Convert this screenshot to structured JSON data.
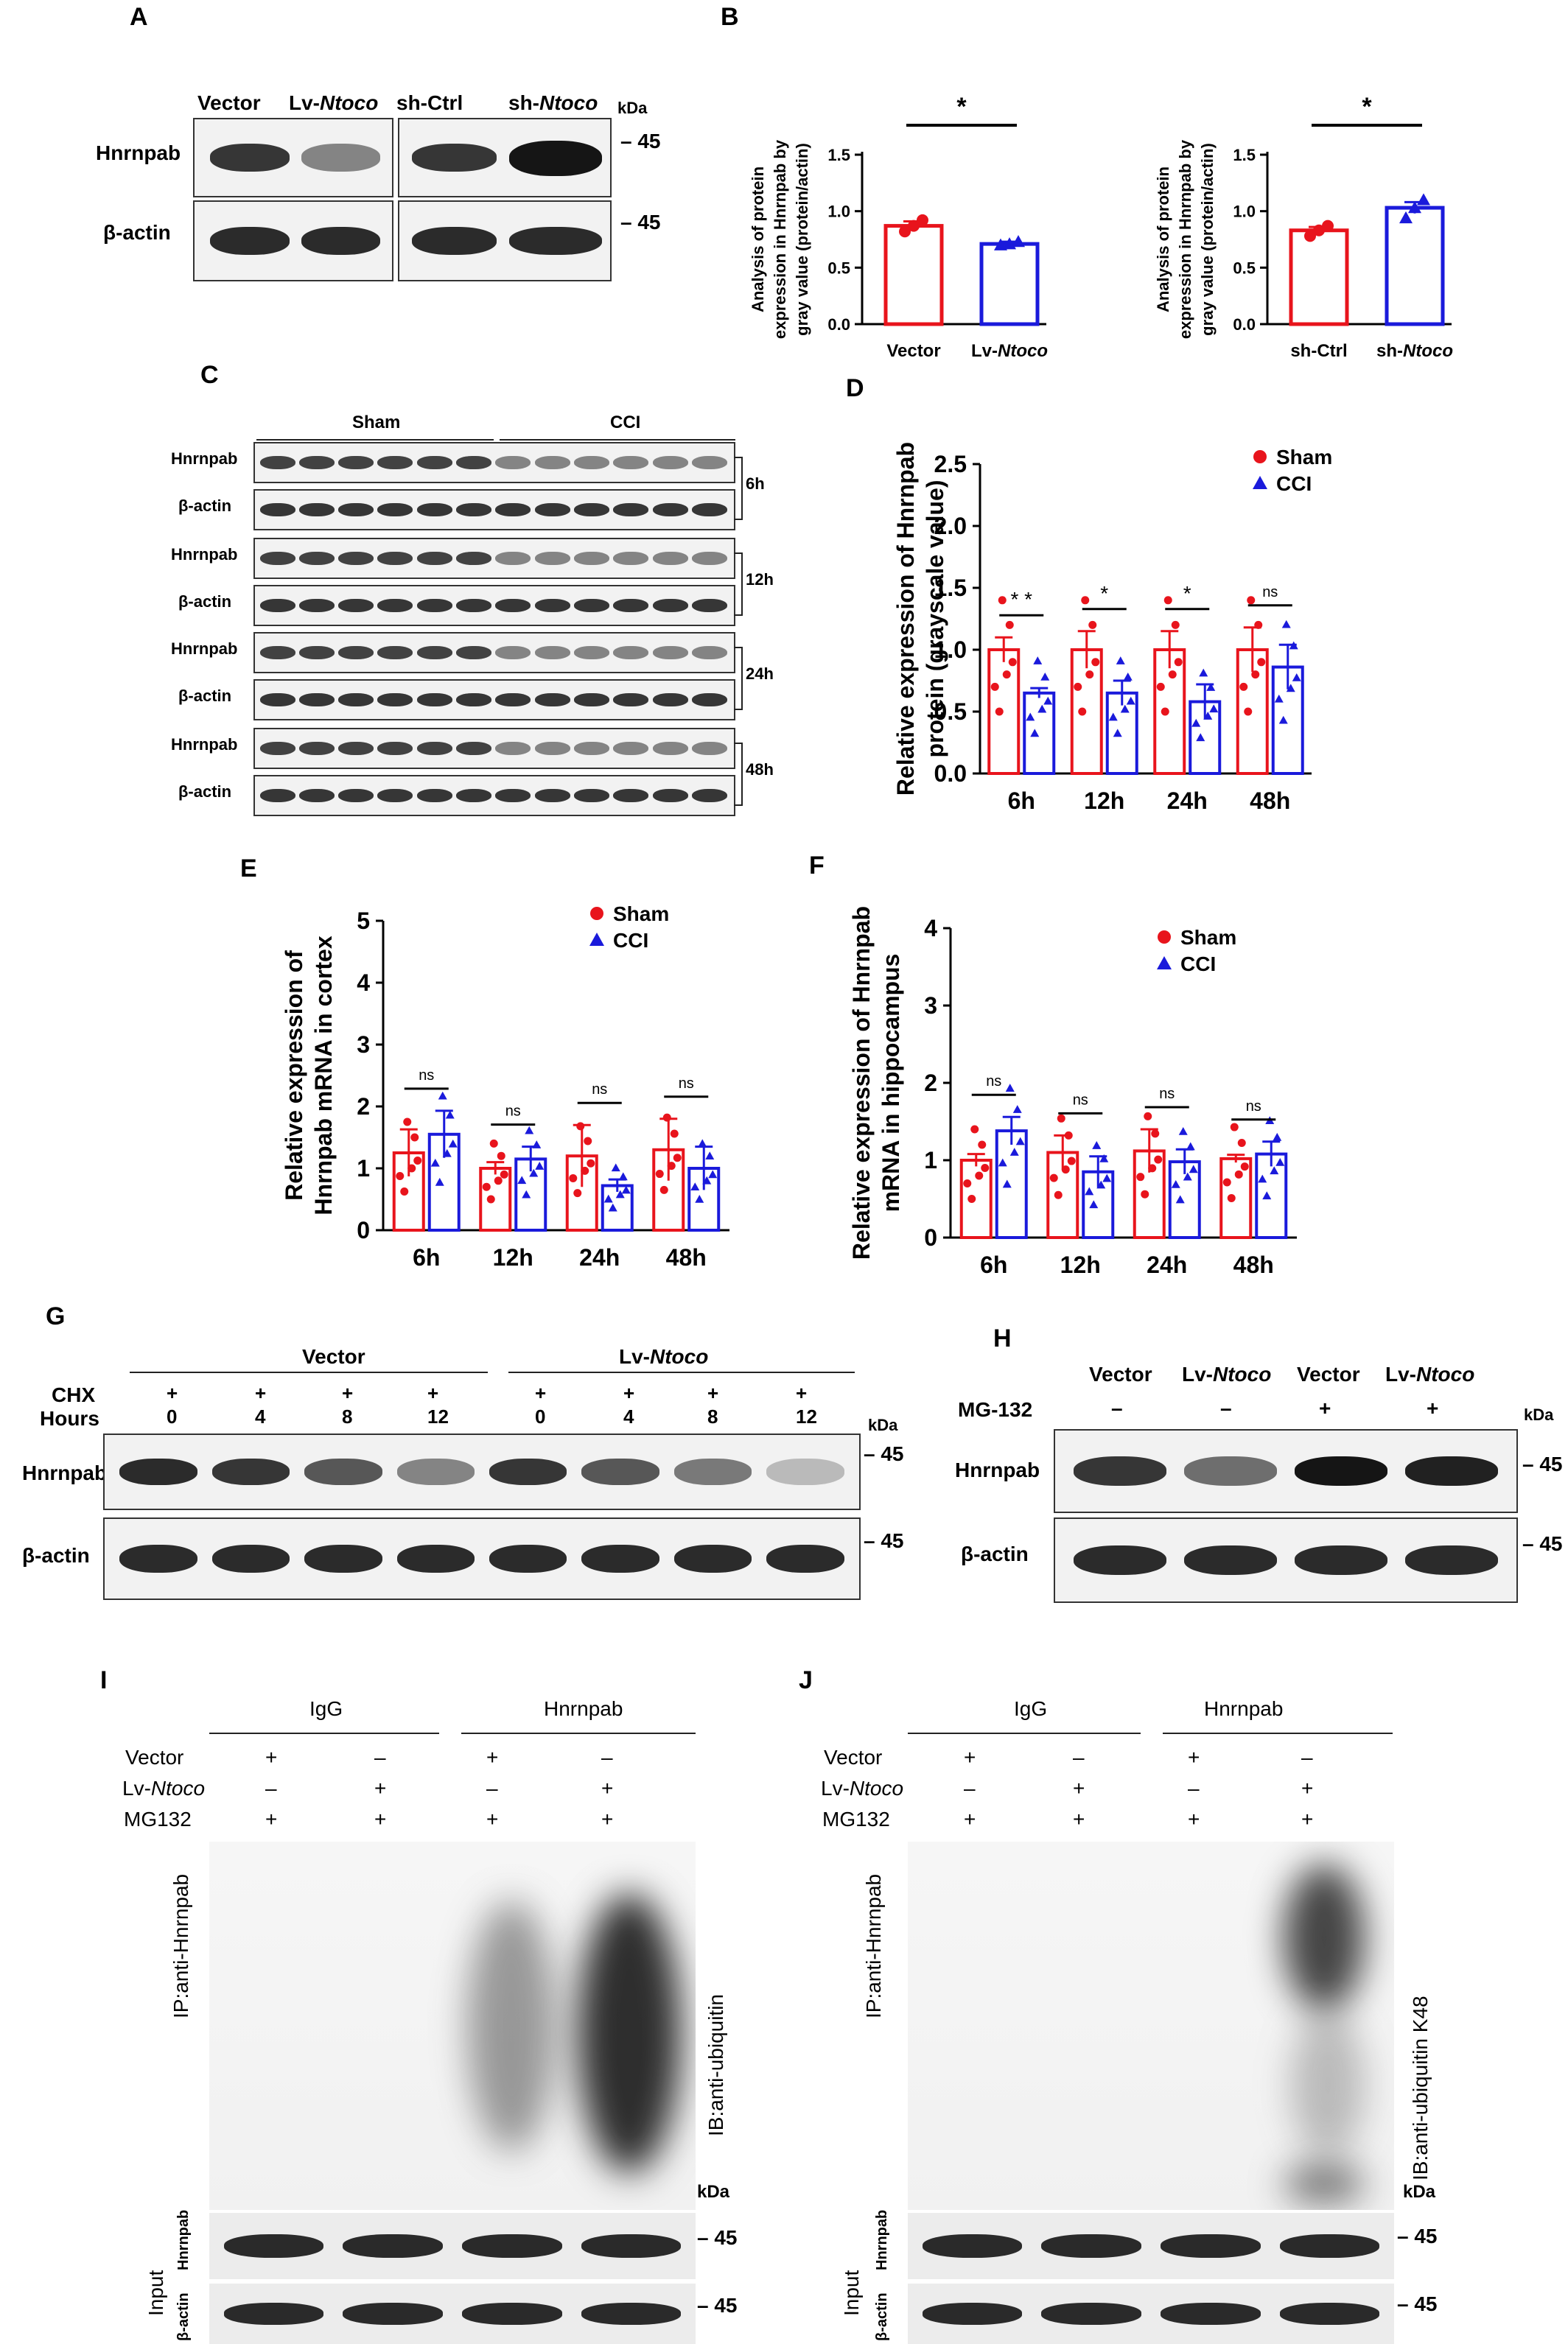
{
  "panels": {
    "A": "A",
    "B": "B",
    "C": "C",
    "D": "D",
    "E": "E",
    "F": "F",
    "G": "G",
    "H": "H",
    "I": "I",
    "J": "J"
  },
  "panelA": {
    "lanes": [
      "Vector",
      "Lv-",
      "sh-Ctrl",
      "sh-"
    ],
    "ital": "Ntoco",
    "kda": "kDa",
    "rows": [
      "Hnrnpab",
      "β-actin"
    ],
    "mw": [
      "45",
      "45"
    ],
    "intensities": {
      "Hnrnpab": [
        0.85,
        0.5,
        0.85,
        1.0
      ],
      "actin": [
        0.9,
        0.9,
        0.9,
        0.9
      ]
    }
  },
  "common": {
    "sig": "*",
    "ns": "ns",
    "dstar": "* *",
    "sham": "Sham",
    "cci": "CCI",
    "colors": {
      "sham": "#e8141c",
      "cci": "#1a1adb"
    }
  },
  "chart_data": [
    {
      "id": "B1",
      "type": "bar",
      "categories": [
        "Vector",
        "Lv-Ntoco"
      ],
      "values": [
        0.87,
        0.71
      ],
      "errors": [
        0.04,
        0.02
      ],
      "points": [
        [
          0.82,
          0.87,
          0.92
        ],
        [
          0.7,
          0.71,
          0.73
        ]
      ],
      "ylim": [
        0,
        1.5
      ],
      "yticks": [
        "0.0",
        "0.5",
        "1.0",
        "1.5"
      ],
      "ylabel": [
        "Analysis of protein",
        "expression in Hnrnpab by",
        "gray value (protein/actin)"
      ],
      "sig": "*"
    },
    {
      "id": "B2",
      "type": "bar",
      "categories": [
        "sh-Ctrl",
        "sh-Ntoco"
      ],
      "values": [
        0.83,
        1.03
      ],
      "errors": [
        0.03,
        0.05
      ],
      "points": [
        [
          0.78,
          0.83,
          0.87
        ],
        [
          0.94,
          1.03,
          1.1
        ]
      ],
      "ylim": [
        0,
        1.5
      ],
      "yticks": [
        "0.0",
        "0.5",
        "1.0",
        "1.5"
      ],
      "ylabel": [
        "Analysis of protein",
        "expression in Hnrnpab by",
        "gray value (protein/actin)"
      ],
      "sig": "*"
    },
    {
      "id": "D",
      "type": "bar",
      "categories": [
        "6h",
        "12h",
        "24h",
        "48h"
      ],
      "series": [
        {
          "name": "Sham",
          "values": [
            1.0,
            1.0,
            1.0,
            1.0
          ],
          "errors": [
            0.1,
            0.15,
            0.15,
            0.18
          ]
        },
        {
          "name": "CCI",
          "values": [
            0.65,
            0.65,
            0.58,
            0.86
          ],
          "errors": [
            0.04,
            0.1,
            0.14,
            0.18
          ]
        }
      ],
      "ylim": [
        0,
        2.5
      ],
      "yticks": [
        "0.0",
        "0.5",
        "1.0",
        "1.5",
        "2.0",
        "2.5"
      ],
      "ylabel": [
        "Relative expression of Hnrnpab",
        "protein (grayscale value)"
      ],
      "sig": [
        "* *",
        "*",
        "*",
        "ns"
      ]
    },
    {
      "id": "E",
      "type": "bar",
      "categories": [
        "6h",
        "12h",
        "24h",
        "48h"
      ],
      "series": [
        {
          "name": "Sham",
          "values": [
            1.25,
            1.0,
            1.2,
            1.3
          ],
          "errors": [
            0.38,
            0.1,
            0.5,
            0.5
          ]
        },
        {
          "name": "CCI",
          "values": [
            1.55,
            1.15,
            0.72,
            1.0
          ],
          "errors": [
            0.38,
            0.2,
            0.1,
            0.35
          ]
        }
      ],
      "ylim": [
        0,
        5
      ],
      "yticks": [
        "0",
        "1",
        "2",
        "3",
        "4",
        "5"
      ],
      "ylabel": [
        "Relative expression of",
        "Hnrnpab mRNA in cortex"
      ],
      "sig": [
        "ns",
        "ns",
        "ns",
        "ns"
      ]
    },
    {
      "id": "F",
      "type": "bar",
      "categories": [
        "6h",
        "12h",
        "24h",
        "48h"
      ],
      "series": [
        {
          "name": "Sham",
          "values": [
            1.0,
            1.1,
            1.12,
            1.02
          ],
          "errors": [
            0.08,
            0.22,
            0.28,
            0.05
          ]
        },
        {
          "name": "CCI",
          "values": [
            1.38,
            0.85,
            0.98,
            1.08
          ],
          "errors": [
            0.18,
            0.2,
            0.16,
            0.16
          ]
        }
      ],
      "ylim": [
        0,
        4
      ],
      "yticks": [
        "0",
        "1",
        "2",
        "3",
        "4"
      ],
      "ylabel": [
        "Relative expression of Hnrnpab",
        "mRNA in hippocampus"
      ],
      "sig": [
        "ns",
        "ns",
        "ns",
        "ns"
      ]
    }
  ],
  "panelC": {
    "groups": [
      "Sham",
      "CCI"
    ],
    "rows": [
      "Hnrnpab",
      "β-actin",
      "Hnrnpab",
      "β-actin",
      "Hnrnpab",
      "β-actin",
      "Hnrnpab",
      "β-actin"
    ],
    "times": [
      "6h",
      "12h",
      "24h",
      "48h"
    ]
  },
  "panelG": {
    "groups": [
      "Vector",
      "Lv-"
    ],
    "ital": "Ntoco",
    "cond": [
      "CHX",
      "Hours"
    ],
    "plus": [
      "+",
      "+",
      "+",
      "+",
      "+",
      "+",
      "+",
      "+"
    ],
    "hours": [
      "0",
      "4",
      "8",
      "12",
      "0",
      "4",
      "8",
      "12"
    ],
    "rows": [
      "Hnrnpab",
      "β-actin"
    ],
    "mw": [
      "45",
      "45"
    ],
    "kda": "kDa",
    "intensities": {
      "Hnrnpab": [
        0.9,
        0.85,
        0.7,
        0.5,
        0.85,
        0.7,
        0.55,
        0.25
      ]
    }
  },
  "panelH": {
    "lanes": [
      "Vector",
      "Lv-",
      "Vector",
      "Lv-"
    ],
    "ital": "Ntoco",
    "cond": "MG-132",
    "marks": [
      "–",
      "–",
      "+",
      "+"
    ],
    "rows": [
      "Hnrnpab",
      "β-actin"
    ],
    "mw": [
      "45",
      "45"
    ],
    "kda": "kDa",
    "intensities": {
      "Hnrnpab": [
        0.85,
        0.6,
        1.0,
        0.95
      ]
    }
  },
  "panelI": {
    "groups": [
      "IgG",
      "Hnrnpab"
    ],
    "conds": [
      "Vector",
      "Lv-",
      "MG132"
    ],
    "ital": "Ntoco",
    "rowVector": [
      "+",
      "–",
      "+",
      "–"
    ],
    "rowLv": [
      "–",
      "+",
      "–",
      "+"
    ],
    "rowMG": [
      "+",
      "+",
      "+",
      "+"
    ],
    "ip": "IP:anti-Hnrnpab",
    "ib": "IB:anti-ubiquitin",
    "kda": "kDa",
    "input": "Input",
    "inHn": "Hnrnpab",
    "inAct": "β-actin",
    "mw": [
      "45",
      "45"
    ]
  },
  "panelJ": {
    "groups": [
      "IgG",
      "Hnrnpab"
    ],
    "conds": [
      "Vector",
      "Lv-",
      "MG132"
    ],
    "ital": "Ntoco",
    "rowVector": [
      "+",
      "–",
      "+",
      "–"
    ],
    "rowLv": [
      "–",
      "+",
      "–",
      "+"
    ],
    "rowMG": [
      "+",
      "+",
      "+",
      "+"
    ],
    "ip": "IP:anti-Hnrnpab",
    "ib": "IB:anti-ubiquitin K48",
    "kda": "kDa",
    "input": "Input",
    "inHn": "Hnrnpab",
    "inAct": "β-actin",
    "mw": [
      "45",
      "45"
    ]
  }
}
